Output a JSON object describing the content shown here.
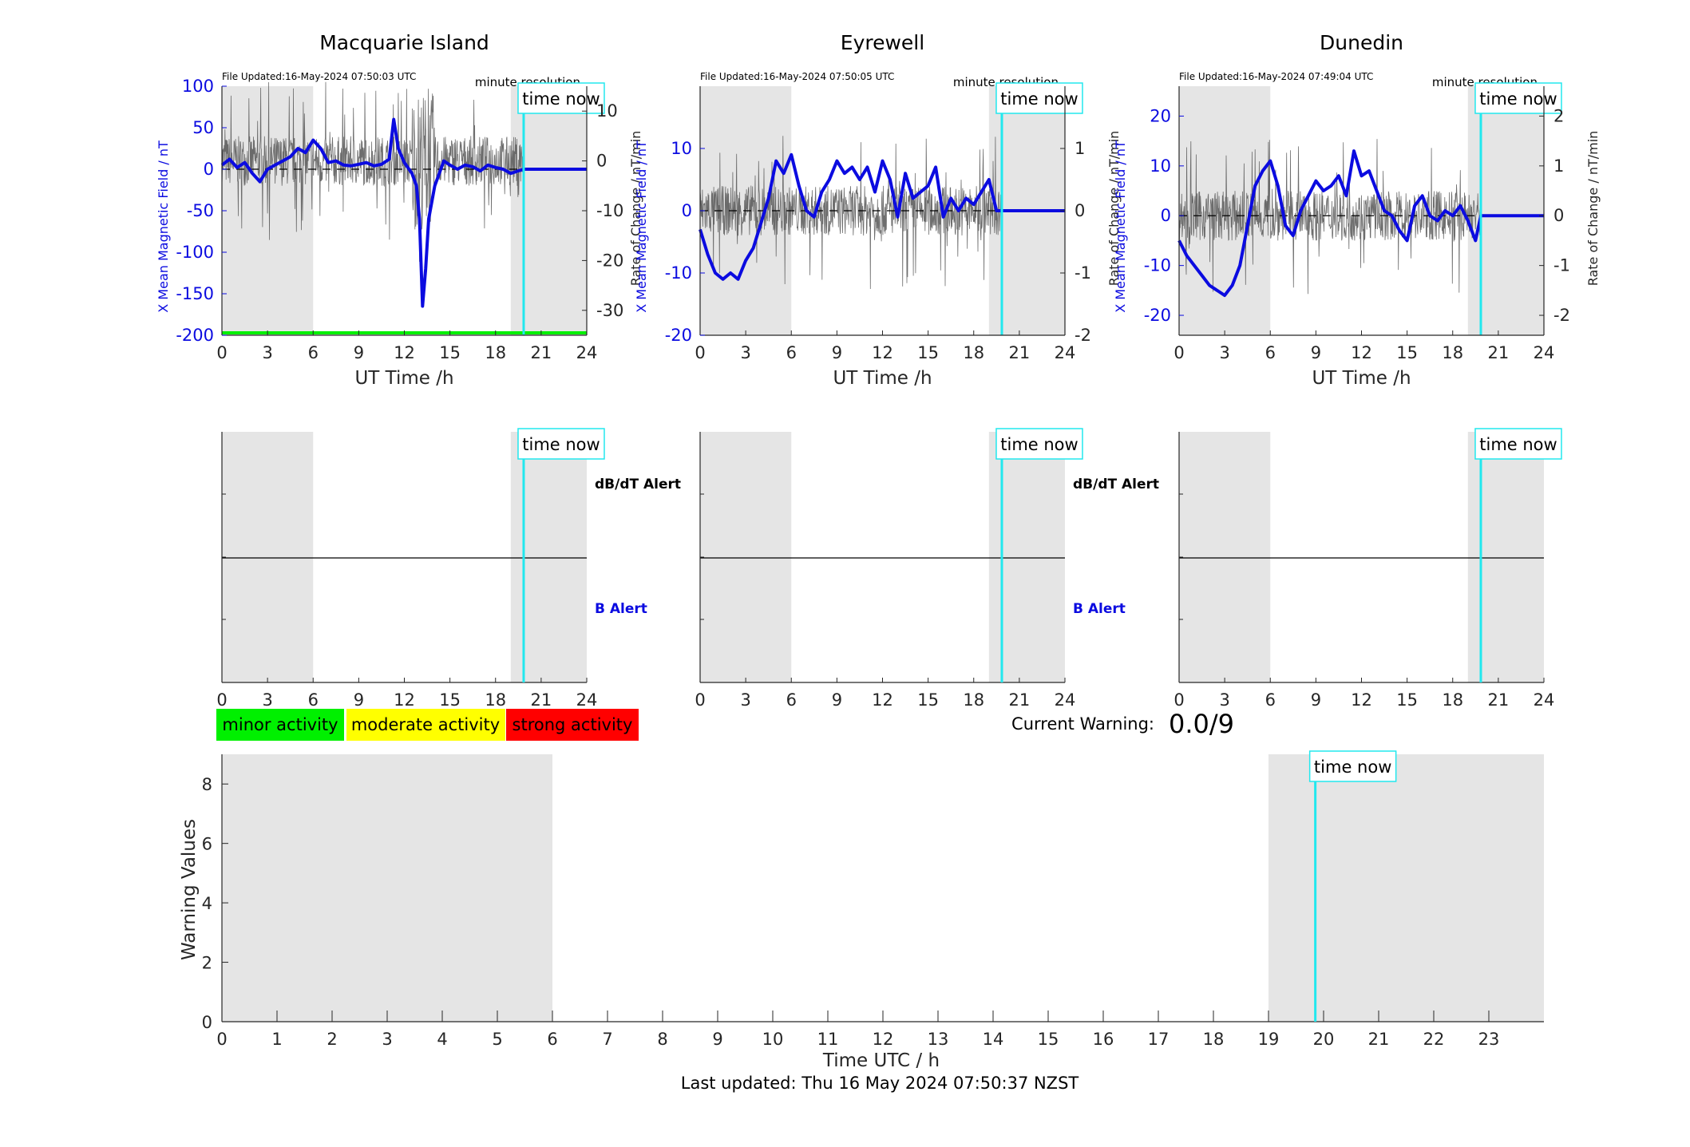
{
  "colors": {
    "shade": "#e5e5e5",
    "field": "#0b0be0",
    "rate": "#555555",
    "now": "#22e8ee",
    "zero": "#000000",
    "minor": "#00f000",
    "moderate": "#ffff00",
    "strong": "#ff0000"
  },
  "time_now_label": "time now",
  "x_ticks_station": [
    "0",
    "3",
    "6",
    "9",
    "12",
    "15",
    "18",
    "21",
    "24"
  ],
  "xlabel_station": "UT Time /h",
  "file_updated_prefix": "File Updated:",
  "minute_resolution_label": "minute resolution",
  "ylabel_field": "X Mean Magnetic Field / nT",
  "ylabel_rate": "Rate of Change / nT/min",
  "stations": [
    {
      "name": "Macquarie Island",
      "file_updated": "16-May-2024 07:50:03 UTC",
      "left_ticks": [
        "100",
        "50",
        "0",
        "-50",
        "-100",
        "-150",
        "-200"
      ],
      "right_ticks": [
        "10",
        "0",
        "-10",
        "-20",
        "-30"
      ]
    },
    {
      "name": "Eyrewell",
      "file_updated": "16-May-2024 07:50:05 UTC",
      "left_ticks": [
        "10",
        "0",
        "-10",
        "-20"
      ],
      "right_ticks": [
        "1",
        "0",
        "-1",
        "-2"
      ]
    },
    {
      "name": "Dunedin",
      "file_updated": "16-May-2024 07:49:04 UTC",
      "left_ticks": [
        "20",
        "10",
        "0",
        "-10",
        "-20"
      ],
      "right_ticks": [
        "2",
        "1",
        "0",
        "-1",
        "-2"
      ]
    }
  ],
  "alerts": {
    "dbdt": "dB/dT Alert",
    "b": "B Alert"
  },
  "legend": {
    "minor": "minor activity",
    "moderate": "moderate activity",
    "strong": "strong activity"
  },
  "current_warning": {
    "label": "Current Warning:",
    "value": "0.0/9"
  },
  "warning_chart": {
    "ylabel": "Warning Values",
    "xlabel": "Time UTC / h",
    "y_ticks": [
      "0",
      "2",
      "4",
      "6",
      "8"
    ],
    "x_ticks": [
      "0",
      "1",
      "2",
      "3",
      "4",
      "5",
      "6",
      "7",
      "8",
      "9",
      "10",
      "11",
      "12",
      "13",
      "14",
      "15",
      "16",
      "17",
      "18",
      "19",
      "20",
      "21",
      "22",
      "23"
    ]
  },
  "footer": "Last updated: Thu 16 May 2024 07:50:37 NZST",
  "chart_data": [
    {
      "type": "line",
      "title": "Macquarie Island",
      "xlabel": "UT Time /h",
      "ylabel": "X Mean Magnetic Field / nT",
      "ylabel_right": "Rate of Change / nT/min",
      "xlim": [
        0,
        24
      ],
      "ylim": [
        -200,
        100
      ],
      "ylim_right": [
        -35,
        15
      ],
      "shaded_x": [
        [
          0,
          6
        ],
        [
          19,
          24
        ]
      ],
      "time_now": 19.85,
      "minor_threshold_y": -200,
      "series": [
        {
          "x": [
            0,
            0.5,
            1,
            1.5,
            2,
            2.5,
            3,
            3.5,
            4,
            4.5,
            5,
            5.5,
            6,
            6.5,
            7,
            7.5,
            8,
            8.5,
            9,
            9.5,
            10,
            10.5,
            11,
            11.3,
            11.6,
            12,
            12.5,
            12.8,
            13,
            13.2,
            13.4,
            13.6,
            13.8,
            14,
            14.3,
            14.6,
            15,
            15.5,
            16,
            16.5,
            17,
            17.5,
            18,
            18.5,
            19,
            19.5,
            19.85,
            24
          ],
          "y": [
            5,
            12,
            2,
            8,
            -5,
            -15,
            0,
            5,
            10,
            15,
            25,
            20,
            35,
            25,
            8,
            10,
            5,
            4,
            6,
            8,
            4,
            6,
            12,
            60,
            25,
            8,
            -5,
            -20,
            -60,
            -165,
            -120,
            -60,
            -40,
            -20,
            -5,
            10,
            5,
            0,
            5,
            3,
            -2,
            5,
            2,
            0,
            -5,
            -2,
            0,
            0
          ]
        },
        {
          "x": [
            0,
            24
          ],
          "y": [
            0,
            0
          ]
        }
      ]
    },
    {
      "type": "line",
      "title": "Eyrewell",
      "xlabel": "UT Time /h",
      "ylabel": "X Mean Magnetic Field / nT",
      "ylabel_right": "Rate of Change / nT/min",
      "xlim": [
        0,
        24
      ],
      "ylim": [
        -20,
        20
      ],
      "ylim_right": [
        -2,
        2
      ],
      "shaded_x": [
        [
          0,
          6
        ],
        [
          19,
          24
        ]
      ],
      "time_now": 19.85,
      "series": [
        {
          "x": [
            0,
            0.5,
            1,
            1.5,
            2,
            2.5,
            3,
            3.5,
            4,
            4.5,
            5,
            5.5,
            6,
            6.5,
            7,
            7.5,
            8,
            8.5,
            9,
            9.5,
            10,
            10.5,
            11,
            11.5,
            12,
            12.5,
            13,
            13.5,
            14,
            14.5,
            15,
            15.5,
            16,
            16.5,
            17,
            17.5,
            18,
            18.5,
            19,
            19.5,
            19.85,
            24
          ],
          "y": [
            -3,
            -7,
            -10,
            -11,
            -10,
            -11,
            -8,
            -6,
            -2,
            2,
            8,
            6,
            9,
            4,
            0,
            -1,
            3,
            5,
            8,
            6,
            7,
            5,
            7,
            3,
            8,
            5,
            -1,
            6,
            2,
            3,
            4,
            7,
            -1,
            2,
            0,
            2,
            1,
            3,
            5,
            0,
            0,
            0
          ]
        },
        {
          "x": [
            0,
            24
          ],
          "y": [
            0,
            0
          ]
        }
      ]
    },
    {
      "type": "line",
      "title": "Dunedin",
      "xlabel": "UT Time /h",
      "ylabel": "X Mean Magnetic Field / nT",
      "ylabel_right": "Rate of Change / nT/min",
      "xlim": [
        0,
        24
      ],
      "ylim": [
        -24,
        26
      ],
      "ylim_right": [
        -2.4,
        2.6
      ],
      "shaded_x": [
        [
          0,
          6
        ],
        [
          19,
          24
        ]
      ],
      "time_now": 19.85,
      "series": [
        {
          "x": [
            0,
            0.5,
            1,
            1.5,
            2,
            2.5,
            3,
            3.5,
            4,
            4.5,
            5,
            5.5,
            6,
            6.5,
            7,
            7.5,
            8,
            8.5,
            9,
            9.5,
            10,
            10.5,
            11,
            11.5,
            12,
            12.5,
            13,
            13.5,
            14,
            14.5,
            15,
            15.5,
            16,
            16.5,
            17,
            17.5,
            18,
            18.5,
            19,
            19.5,
            19.85,
            24
          ],
          "y": [
            -5,
            -8,
            -10,
            -12,
            -14,
            -15,
            -16,
            -14,
            -10,
            -2,
            6,
            9,
            11,
            6,
            -2,
            -4,
            1,
            4,
            7,
            5,
            6,
            8,
            4,
            13,
            8,
            9,
            5,
            1,
            0,
            -3,
            -5,
            2,
            4,
            0,
            -1,
            1,
            0,
            2,
            -1,
            -5,
            0,
            0
          ]
        },
        {
          "x": [
            0,
            24
          ],
          "y": [
            0,
            0
          ]
        }
      ]
    },
    {
      "type": "line",
      "title": "",
      "xlabel": "Time UTC / h",
      "ylabel": "Warning Values",
      "xlim": [
        0,
        24
      ],
      "ylim": [
        0,
        9
      ],
      "shaded_x": [
        [
          0,
          6
        ],
        [
          19,
          24
        ]
      ],
      "time_now": 19.85,
      "series": []
    }
  ]
}
